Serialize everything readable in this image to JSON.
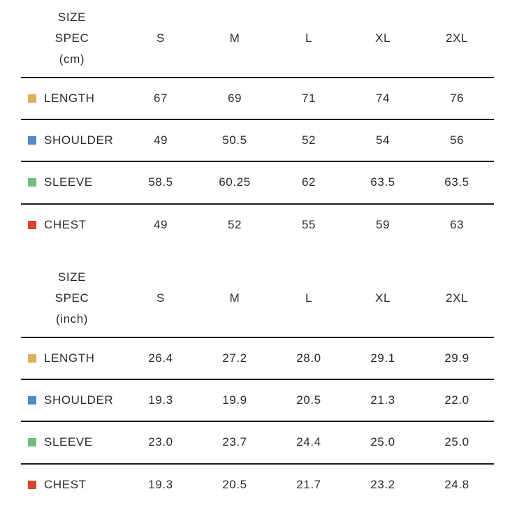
{
  "colors": {
    "length": "#dfae55",
    "shoulder": "#4f8ac9",
    "sleeve": "#6ebd82",
    "chest": "#d9442f"
  },
  "sizes": [
    "S",
    "M",
    "L",
    "XL",
    "2XL"
  ],
  "cm_table": {
    "spec_lines": [
      "SIZE",
      "SPEC",
      "(cm)"
    ],
    "rows": [
      {
        "label": "LENGTH",
        "values": [
          "67",
          "69",
          "71",
          "74",
          "76"
        ]
      },
      {
        "label": "SHOULDER",
        "values": [
          "49",
          "50.5",
          "52",
          "54",
          "56"
        ]
      },
      {
        "label": "SLEEVE",
        "values": [
          "58.5",
          "60.25",
          "62",
          "63.5",
          "63.5"
        ]
      },
      {
        "label": "CHEST",
        "values": [
          "49",
          "52",
          "55",
          "59",
          "63"
        ]
      }
    ]
  },
  "inch_table": {
    "spec_lines": [
      "SIZE",
      "SPEC",
      "(inch)"
    ],
    "rows": [
      {
        "label": "LENGTH",
        "values": [
          "26.4",
          "27.2",
          "28.0",
          "29.1",
          "29.9"
        ]
      },
      {
        "label": "SHOULDER",
        "values": [
          "19.3",
          "19.9",
          "20.5",
          "21.3",
          "22.0"
        ]
      },
      {
        "label": "SLEEVE",
        "values": [
          "23.0",
          "23.7",
          "24.4",
          "25.0",
          "25.0"
        ]
      },
      {
        "label": "CHEST",
        "values": [
          "19.3",
          "20.5",
          "21.7",
          "23.2",
          "24.8"
        ]
      }
    ]
  }
}
